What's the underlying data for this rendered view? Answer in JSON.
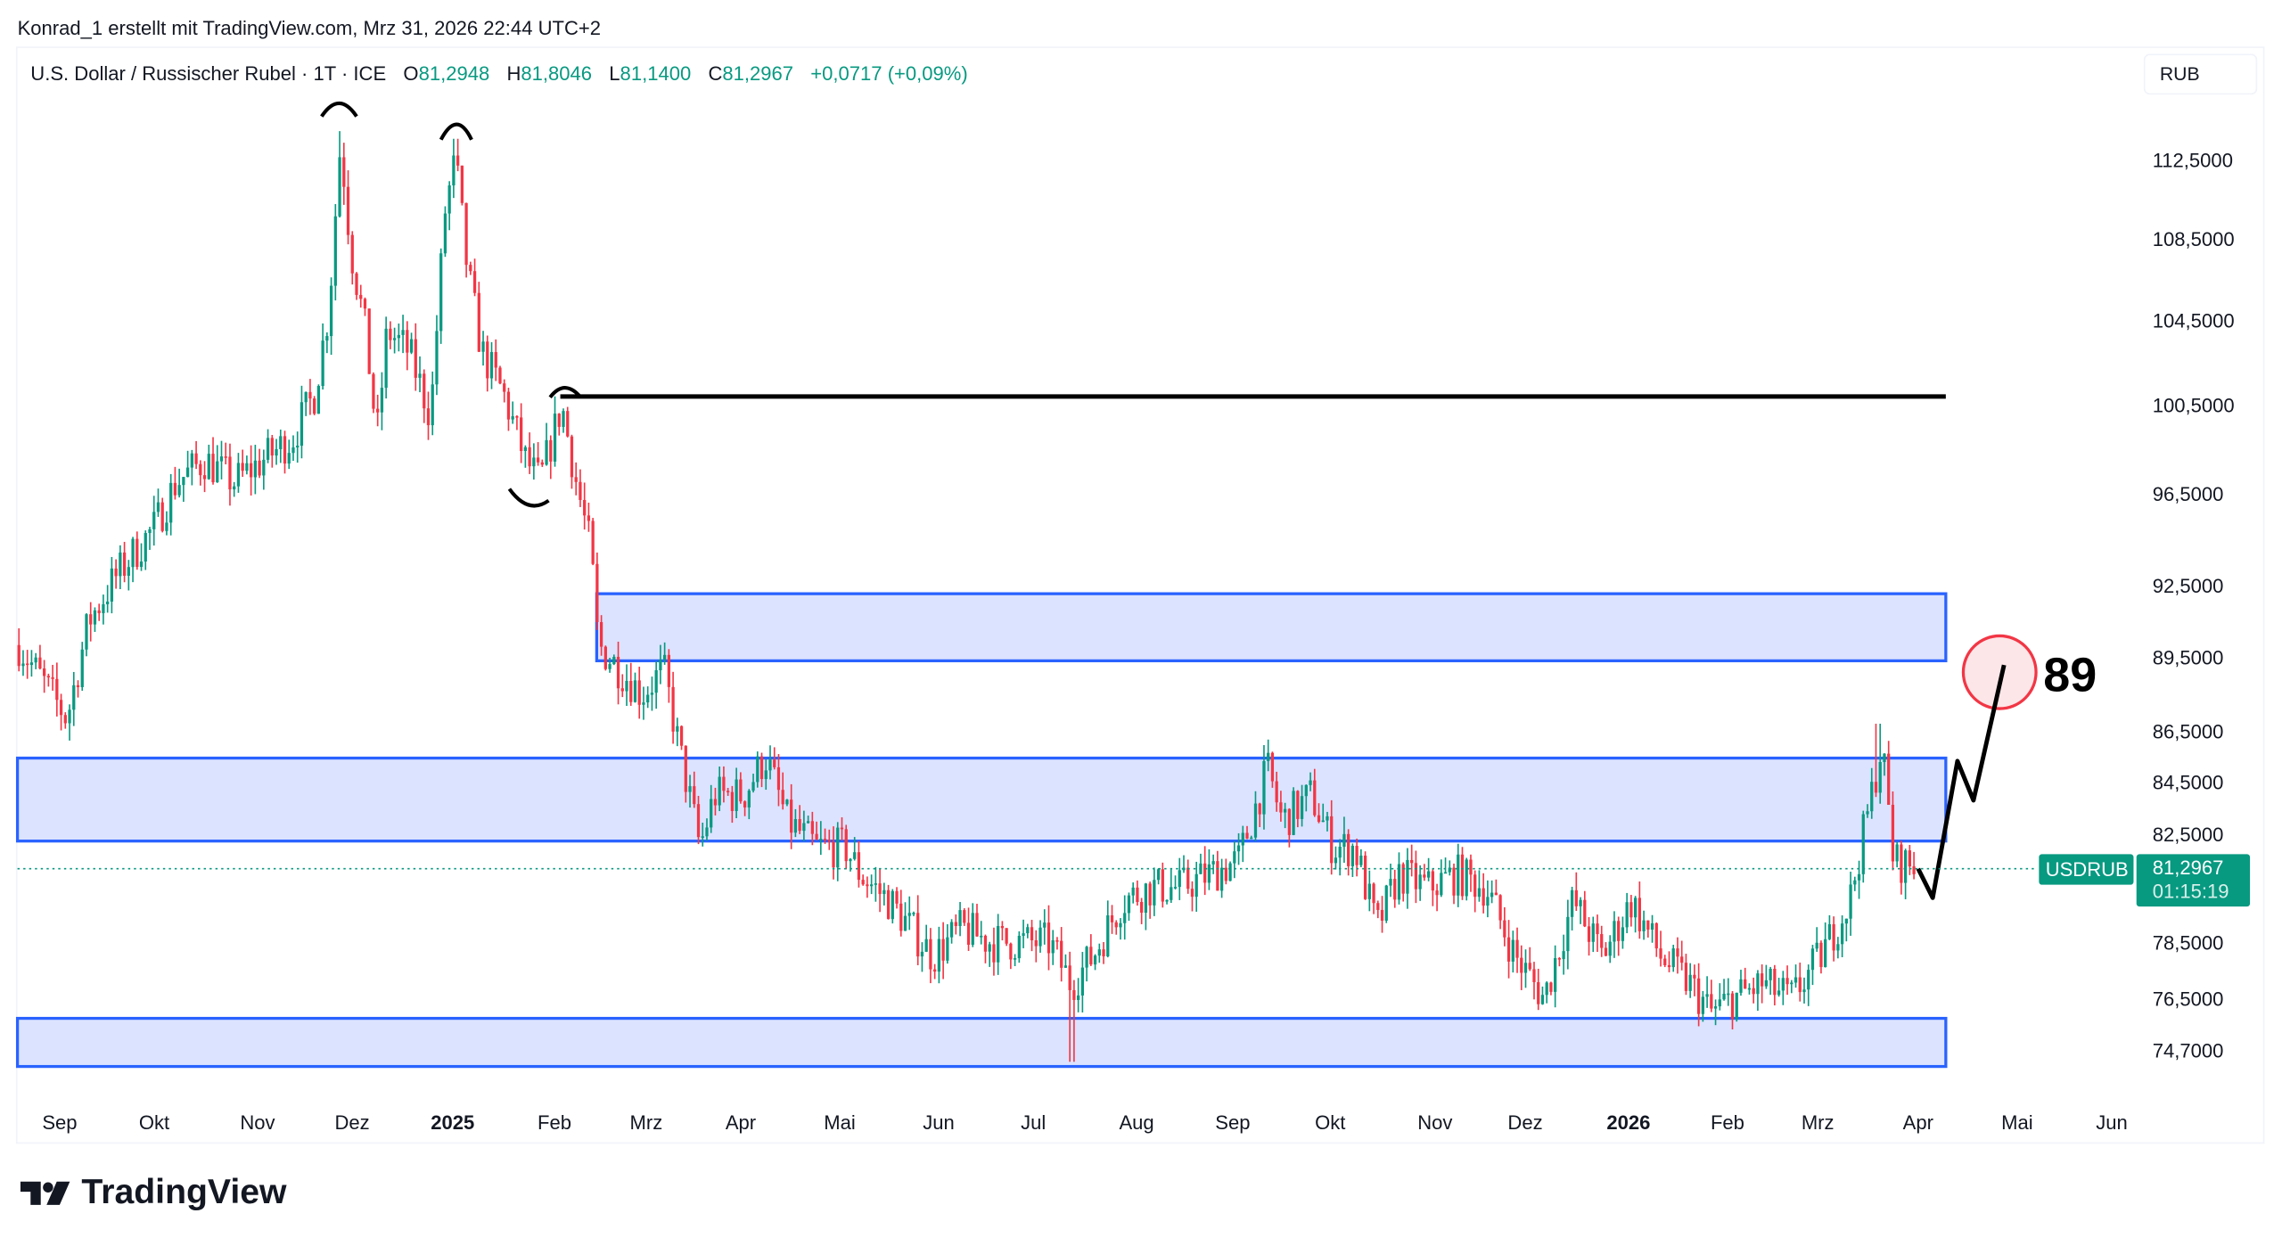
{
  "credit": "Konrad_1 erstellt mit TradingView.com, Mrz 31, 2026 22:44 UTC+2",
  "legend": {
    "symbol": "U.S. Dollar / Russischer Rubel · 1T · ICE",
    "o_label": "O",
    "o": "81,2948",
    "h_label": "H",
    "h": "81,8046",
    "l_label": "L",
    "l": "81,1400",
    "c_label": "C",
    "c": "81,2967",
    "change": "+0,0717 (+0,09%)"
  },
  "currency_button": "RUB",
  "price_axis": [
    "112,5000",
    "108,5000",
    "104,5000",
    "100,5000",
    "96,5000",
    "92,5000",
    "89,5000",
    "86,5000",
    "84,5000",
    "82,5000",
    "78,5000",
    "76,5000",
    "74,7000"
  ],
  "time_axis": [
    {
      "label": "Sep",
      "year": false
    },
    {
      "label": "Okt",
      "year": false
    },
    {
      "label": "Nov",
      "year": false
    },
    {
      "label": "Dez",
      "year": false
    },
    {
      "label": "2025",
      "year": true
    },
    {
      "label": "Feb",
      "year": false
    },
    {
      "label": "Mrz",
      "year": false
    },
    {
      "label": "Apr",
      "year": false
    },
    {
      "label": "Mai",
      "year": false
    },
    {
      "label": "Jun",
      "year": false
    },
    {
      "label": "Jul",
      "year": false
    },
    {
      "label": "Aug",
      "year": false
    },
    {
      "label": "Sep",
      "year": false
    },
    {
      "label": "Okt",
      "year": false
    },
    {
      "label": "Nov",
      "year": false
    },
    {
      "label": "Dez",
      "year": false
    },
    {
      "label": "2026",
      "year": true
    },
    {
      "label": "Feb",
      "year": false
    },
    {
      "label": "Mrz",
      "year": false
    },
    {
      "label": "Apr",
      "year": false
    },
    {
      "label": "Mai",
      "year": false
    },
    {
      "label": "Jun",
      "year": false
    }
  ],
  "last_price": {
    "symbol": "USDRUB",
    "price": "81,2967",
    "countdown": "01:15:19"
  },
  "annotation_target": "89",
  "brand": "TradingView",
  "colors": {
    "up": "#089981",
    "down": "#f23645",
    "zone": "#2962ff",
    "zone_fill": "#d6deff",
    "target": "#f23645"
  },
  "chart_data": {
    "type": "candlestick",
    "title": "U.S. Dollar / Russischer Rubel · 1T · ICE",
    "ylabel": "RUB",
    "ylim": [
      74.2,
      114
    ],
    "scale": "log",
    "series_keypoints_close": [
      [
        "Aug 2024",
        90
      ],
      [
        "Sep 2024",
        87
      ],
      [
        "Sep 2024",
        91
      ],
      [
        "Okt 2024",
        93
      ],
      [
        "Okt 2024",
        95
      ],
      [
        "Okt 2024",
        97
      ],
      [
        "Nov 2024",
        98
      ],
      [
        "Nov 2024",
        97
      ],
      [
        "Nov 2024",
        98
      ],
      [
        "Nov 2024",
        99
      ],
      [
        "Dez 2024",
        101
      ],
      [
        "Dez 2024",
        105
      ],
      [
        "Dez 2024",
        113.5
      ],
      [
        "Dez 2024",
        108
      ],
      [
        "Dez 2024",
        104
      ],
      [
        "Dez 2024",
        99
      ],
      [
        "Dez 2024",
        104
      ],
      [
        "Dez 2024",
        103
      ],
      [
        "Jan 2025",
        100
      ],
      [
        "Jan 2025",
        110
      ],
      [
        "Jan 2025",
        112.5
      ],
      [
        "Jan 2025",
        107
      ],
      [
        "Jan 2025",
        103
      ],
      [
        "Jan 2025",
        101
      ],
      [
        "Jan 2025",
        98
      ],
      [
        "Feb 2025",
        97
      ],
      [
        "Feb 2025",
        100.5
      ],
      [
        "Feb 2025",
        97
      ],
      [
        "Feb 2025",
        94
      ],
      [
        "Feb 2025",
        90
      ],
      [
        "Feb 2025",
        89
      ],
      [
        "Mrz 2025",
        88
      ],
      [
        "Mrz 2025",
        89
      ],
      [
        "Mrz 2025",
        86
      ],
      [
        "Mrz 2025",
        82
      ],
      [
        "Mrz 2025",
        84
      ],
      [
        "Apr 2025",
        84
      ],
      [
        "Apr 2025",
        85.5
      ],
      [
        "Apr 2025",
        83
      ],
      [
        "Mai 2025",
        82
      ],
      [
        "Mai 2025",
        82
      ],
      [
        "Mai 2025",
        81
      ],
      [
        "Mai 2025",
        80
      ],
      [
        "Jun 2025",
        78
      ],
      [
        "Jun 2025",
        79
      ],
      [
        "Jun 2025",
        78.5
      ],
      [
        "Jul 2025",
        78.5
      ],
      [
        "Jul 2025",
        78.5
      ],
      [
        "Jul 2025",
        77
      ],
      [
        "Jul 2025",
        78
      ],
      [
        "Aug 2025",
        80
      ],
      [
        "Aug 2025",
        80.5
      ],
      [
        "Aug 2025",
        80.5
      ],
      [
        "Aug 2025",
        81
      ],
      [
        "Sep 2025",
        81.5
      ],
      [
        "Sep 2025",
        85
      ],
      [
        "Sep 2025",
        83
      ],
      [
        "Sep 2025",
        84
      ],
      [
        "Okt 2025",
        82
      ],
      [
        "Okt 2025",
        82
      ],
      [
        "Okt 2025",
        79
      ],
      [
        "Okt 2025",
        81
      ],
      [
        "Nov 2025",
        80.5
      ],
      [
        "Nov 2025",
        81
      ],
      [
        "Nov 2025",
        80.5
      ],
      [
        "Dez 2025",
        78
      ],
      [
        "Dez 2025",
        76.5
      ],
      [
        "Dez 2025",
        80
      ],
      [
        "Jan 2026",
        78
      ],
      [
        "Jan 2026",
        80
      ],
      [
        "Jan 2026",
        78
      ],
      [
        "Jan 2026",
        77
      ],
      [
        "Jan 2026",
        76
      ],
      [
        "Feb 2026",
        76.5
      ],
      [
        "Feb 2026",
        77
      ],
      [
        "Feb 2026",
        76.5
      ],
      [
        "Mrz 2026",
        78
      ],
      [
        "Mrz 2026",
        80
      ],
      [
        "Mrz 2026",
        84
      ],
      [
        "Mrz 2026",
        86
      ],
      [
        "Mrz 2026",
        81.5
      ],
      [
        "Mrz 2026",
        81.3
      ]
    ],
    "extremes": {
      "high_dec_2024": 114,
      "high_jan_2025": 113.5,
      "low_jul_2025": 74.3,
      "high_mar_2026": 86.8
    },
    "drawings": {
      "resistance_line": 100.9,
      "zones": [
        [
          89.35,
          92.15
        ],
        [
          82.24,
          85.44
        ],
        [
          74.14,
          75.8
        ]
      ],
      "projected_path": [
        81.3,
        80.0,
        85.5,
        83.8,
        89.0
      ],
      "target": 89
    }
  }
}
